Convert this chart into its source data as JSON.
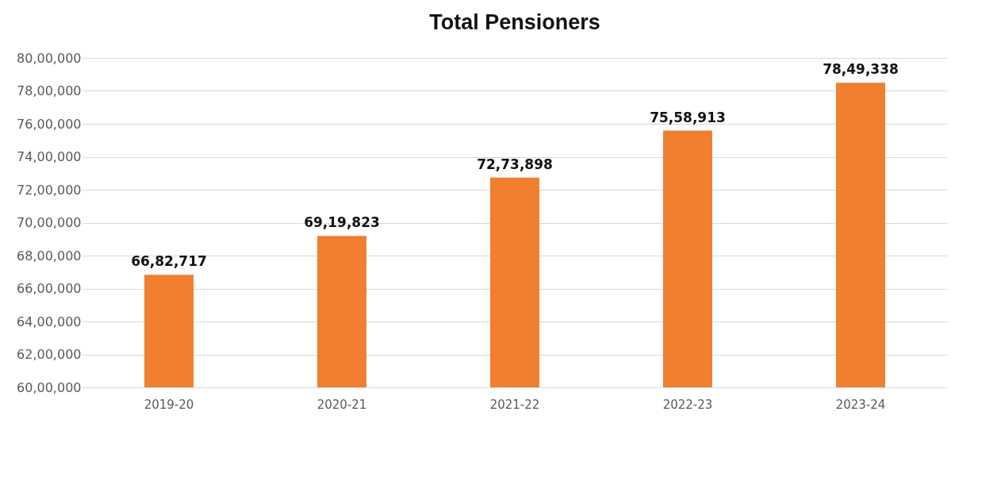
{
  "chart_data": {
    "type": "bar",
    "title": "Total Pensioners",
    "categories": [
      "2019-20",
      "2020-21",
      "2021-22",
      "2022-23",
      "2023-24"
    ],
    "values": [
      6682717,
      6919823,
      7273898,
      7558913,
      7849338
    ],
    "value_labels": [
      "66,82,717",
      "69,19,823",
      "72,73,898",
      "75,58,913",
      "78,49,338"
    ],
    "color": "#f07f2f",
    "ylim": [
      6000000,
      8000000
    ],
    "yticks": [
      {
        "value": 6000000,
        "label": "60,00,000"
      },
      {
        "value": 6200000,
        "label": "62,00,000"
      },
      {
        "value": 6400000,
        "label": "64,00,000"
      },
      {
        "value": 6600000,
        "label": "66,00,000"
      },
      {
        "value": 6800000,
        "label": "68,00,000"
      },
      {
        "value": 7000000,
        "label": "70,00,000"
      },
      {
        "value": 7200000,
        "label": "72,00,000"
      },
      {
        "value": 7400000,
        "label": "74,00,000"
      },
      {
        "value": 7600000,
        "label": "76,00,000"
      },
      {
        "value": 7800000,
        "label": "78,00,000"
      },
      {
        "value": 8000000,
        "label": "80,00,000"
      }
    ],
    "grid": "y"
  }
}
